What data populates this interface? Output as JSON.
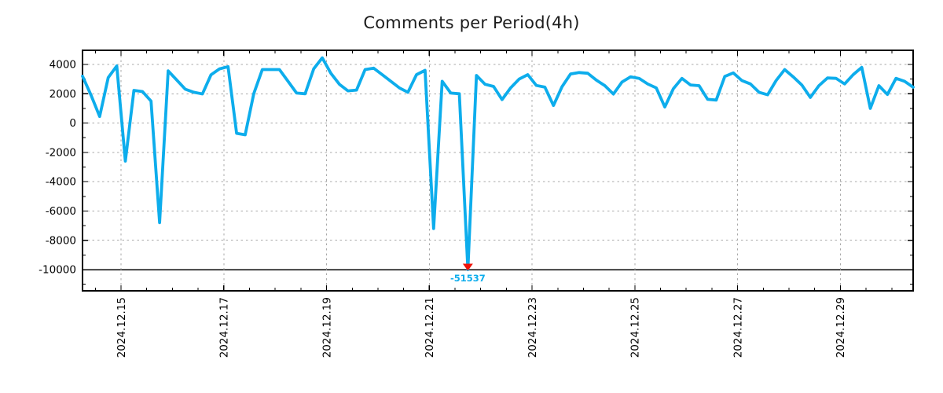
{
  "style": {
    "background": "#ffffff",
    "line_color": "#0dadec",
    "marker_color": "#ee1309",
    "annotation_color": "#0dadec",
    "grid_color": "#a9a9a9",
    "axis_color": "#000000",
    "text_color": "#000000"
  },
  "chart_data": {
    "type": "line",
    "title": "Comments per Period(4h)",
    "period_hours": 4,
    "grid": true,
    "legend": "none",
    "x_tick_labels": [
      "2024.12.15",
      "2024.12.17",
      "2024.12.19",
      "2024.12.21",
      "2024.12.23",
      "2024.12.25",
      "2024.12.27",
      "2024.12.29"
    ],
    "x_major_days_step": 2,
    "y_ticks": [
      4000,
      2000,
      0,
      -2000,
      -4000,
      -6000,
      -8000,
      -10000
    ],
    "y_minor_step": 1000,
    "ylim_drawn": [
      -11350,
      4950
    ],
    "clamp_min": -10000,
    "values": [
      3200,
      1900,
      450,
      3100,
      3900,
      -2600,
      2230,
      2150,
      1500,
      -6800,
      3560,
      2940,
      2310,
      2100,
      1990,
      3290,
      3700,
      3850,
      -700,
      -800,
      2000,
      3650,
      3650,
      3650,
      2850,
      2050,
      2000,
      3700,
      4450,
      3400,
      2650,
      2200,
      2250,
      3650,
      3750,
      3300,
      2850,
      2400,
      2100,
      3300,
      3600,
      -7200,
      2850,
      2050,
      2000,
      -51537,
      3250,
      2650,
      2500,
      1600,
      2400,
      3000,
      3300,
      2570,
      2450,
      1200,
      2480,
      3350,
      3450,
      3400,
      2930,
      2550,
      1980,
      2800,
      3150,
      3050,
      2670,
      2400,
      1100,
      2350,
      3050,
      2600,
      2550,
      1620,
      1570,
      3180,
      3420,
      2900,
      2670,
      2100,
      1930,
      2900,
      3650,
      3150,
      2600,
      1750,
      2550,
      3080,
      3050,
      2670,
      3300,
      3800,
      1000,
      2550,
      1950,
      3050,
      2850,
      2450
    ],
    "annotation": {
      "text": "-51537",
      "value": -51537,
      "index": 45,
      "marker": "triangle-down"
    },
    "x_layout": {
      "first_major_index": 4.5,
      "major_index_step": 12,
      "minor_first_index": 1.5,
      "minor_index_step": 3
    }
  }
}
